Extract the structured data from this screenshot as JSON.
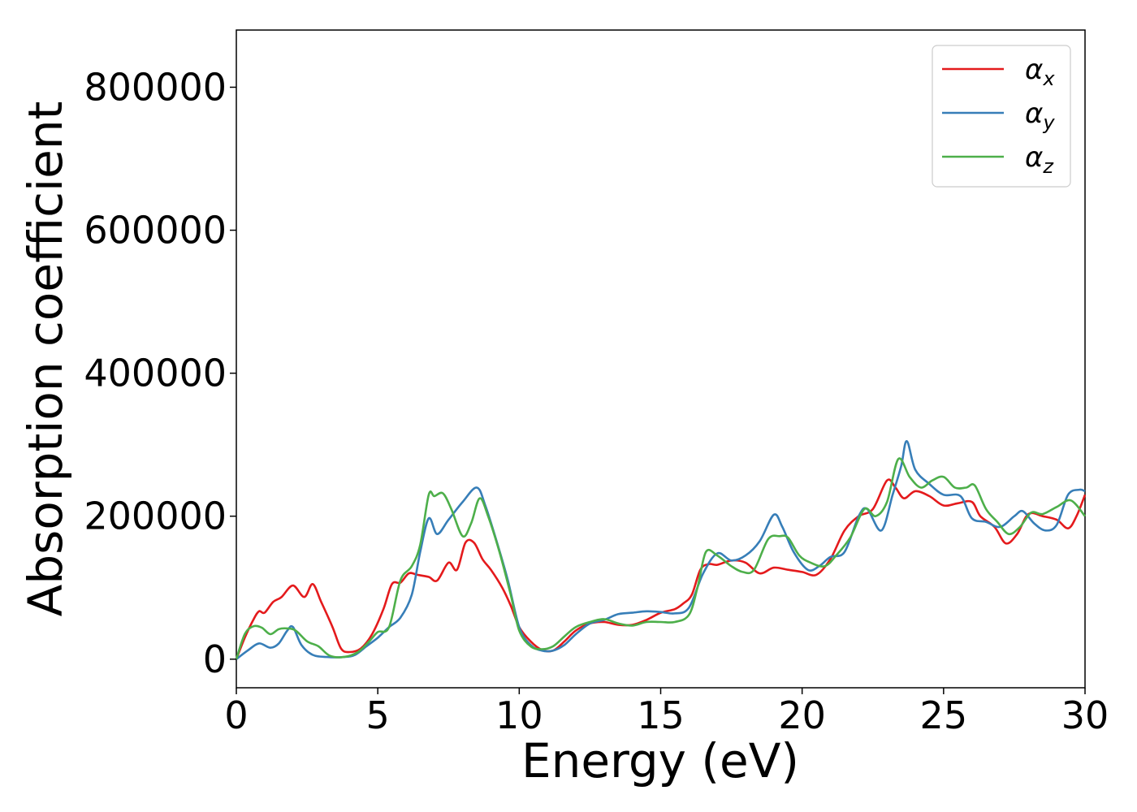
{
  "chart_data": {
    "type": "line",
    "xlabel": "Energy (eV)",
    "ylabel": "Absorption coefficient",
    "xlim": [
      0,
      30
    ],
    "ylim": [
      -40000,
      880000
    ],
    "xticks": [
      0,
      5,
      10,
      15,
      20,
      25,
      30
    ],
    "yticks": [
      0,
      200000,
      400000,
      600000,
      800000
    ],
    "xtick_labels": [
      "0",
      "5",
      "10",
      "15",
      "20",
      "25",
      "30"
    ],
    "ytick_labels": [
      "0",
      "200000",
      "400000",
      "600000",
      "800000"
    ],
    "grid": false,
    "legend_position": "top-right",
    "series": [
      {
        "name": "αx",
        "base": "α",
        "sub": "x",
        "color": "#e41a1c",
        "points": [
          [
            0,
            0
          ],
          [
            0.3,
            30000
          ],
          [
            0.6,
            55000
          ],
          [
            0.8,
            67000
          ],
          [
            1.0,
            65000
          ],
          [
            1.3,
            80000
          ],
          [
            1.6,
            87000
          ],
          [
            2.0,
            103000
          ],
          [
            2.4,
            87000
          ],
          [
            2.7,
            105000
          ],
          [
            3.0,
            80000
          ],
          [
            3.4,
            45000
          ],
          [
            3.7,
            15000
          ],
          [
            4.0,
            10000
          ],
          [
            4.4,
            15000
          ],
          [
            4.8,
            35000
          ],
          [
            5.2,
            70000
          ],
          [
            5.5,
            105000
          ],
          [
            5.8,
            107000
          ],
          [
            6.1,
            120000
          ],
          [
            6.4,
            118000
          ],
          [
            6.8,
            115000
          ],
          [
            7.1,
            110000
          ],
          [
            7.5,
            135000
          ],
          [
            7.8,
            125000
          ],
          [
            8.1,
            163000
          ],
          [
            8.4,
            163000
          ],
          [
            8.7,
            140000
          ],
          [
            9.0,
            125000
          ],
          [
            9.4,
            100000
          ],
          [
            9.7,
            75000
          ],
          [
            10.0,
            45000
          ],
          [
            10.4,
            25000
          ],
          [
            10.8,
            13000
          ],
          [
            11.2,
            12000
          ],
          [
            11.6,
            25000
          ],
          [
            12.0,
            40000
          ],
          [
            12.5,
            50000
          ],
          [
            13.0,
            52000
          ],
          [
            13.5,
            48000
          ],
          [
            14.0,
            48000
          ],
          [
            14.5,
            55000
          ],
          [
            15.0,
            65000
          ],
          [
            15.5,
            70000
          ],
          [
            15.8,
            78000
          ],
          [
            16.1,
            90000
          ],
          [
            16.4,
            125000
          ],
          [
            16.7,
            133000
          ],
          [
            17.0,
            132000
          ],
          [
            17.5,
            138000
          ],
          [
            18.0,
            135000
          ],
          [
            18.5,
            120000
          ],
          [
            19.0,
            128000
          ],
          [
            19.5,
            125000
          ],
          [
            20.0,
            122000
          ],
          [
            20.5,
            118000
          ],
          [
            21.0,
            140000
          ],
          [
            21.5,
            180000
          ],
          [
            22.0,
            200000
          ],
          [
            22.5,
            210000
          ],
          [
            23.0,
            250000
          ],
          [
            23.3,
            240000
          ],
          [
            23.6,
            225000
          ],
          [
            24.0,
            235000
          ],
          [
            24.5,
            228000
          ],
          [
            25.0,
            215000
          ],
          [
            25.5,
            218000
          ],
          [
            26.0,
            220000
          ],
          [
            26.3,
            200000
          ],
          [
            26.8,
            185000
          ],
          [
            27.2,
            162000
          ],
          [
            27.6,
            175000
          ],
          [
            28.0,
            203000
          ],
          [
            28.5,
            200000
          ],
          [
            29.0,
            195000
          ],
          [
            29.4,
            183000
          ],
          [
            29.7,
            200000
          ],
          [
            30.0,
            230000
          ]
        ]
      },
      {
        "name": "αy",
        "base": "α",
        "sub": "y",
        "color": "#377eb8",
        "points": [
          [
            0,
            0
          ],
          [
            0.4,
            12000
          ],
          [
            0.8,
            22000
          ],
          [
            1.2,
            16000
          ],
          [
            1.5,
            22000
          ],
          [
            1.8,
            40000
          ],
          [
            2.0,
            45000
          ],
          [
            2.3,
            20000
          ],
          [
            2.7,
            6000
          ],
          [
            3.2,
            3000
          ],
          [
            3.8,
            3000
          ],
          [
            4.2,
            6000
          ],
          [
            4.6,
            18000
          ],
          [
            5.0,
            30000
          ],
          [
            5.4,
            45000
          ],
          [
            5.8,
            58000
          ],
          [
            6.2,
            90000
          ],
          [
            6.5,
            150000
          ],
          [
            6.8,
            197000
          ],
          [
            7.1,
            175000
          ],
          [
            7.5,
            195000
          ],
          [
            8.0,
            220000
          ],
          [
            8.5,
            240000
          ],
          [
            8.8,
            215000
          ],
          [
            9.2,
            165000
          ],
          [
            9.6,
            110000
          ],
          [
            10.0,
            45000
          ],
          [
            10.4,
            20000
          ],
          [
            10.8,
            12000
          ],
          [
            11.2,
            12000
          ],
          [
            11.6,
            20000
          ],
          [
            12.0,
            35000
          ],
          [
            12.5,
            50000
          ],
          [
            13.0,
            55000
          ],
          [
            13.5,
            63000
          ],
          [
            14.0,
            65000
          ],
          [
            14.5,
            67000
          ],
          [
            15.0,
            66000
          ],
          [
            15.5,
            64000
          ],
          [
            16.0,
            72000
          ],
          [
            16.5,
            120000
          ],
          [
            17.0,
            148000
          ],
          [
            17.5,
            138000
          ],
          [
            18.0,
            145000
          ],
          [
            18.5,
            165000
          ],
          [
            19.0,
            202000
          ],
          [
            19.3,
            185000
          ],
          [
            19.7,
            150000
          ],
          [
            20.2,
            125000
          ],
          [
            20.6,
            130000
          ],
          [
            21.0,
            143000
          ],
          [
            21.5,
            150000
          ],
          [
            22.0,
            200000
          ],
          [
            22.3,
            210000
          ],
          [
            22.8,
            180000
          ],
          [
            23.2,
            230000
          ],
          [
            23.5,
            270000
          ],
          [
            23.7,
            305000
          ],
          [
            24.0,
            265000
          ],
          [
            24.5,
            245000
          ],
          [
            25.0,
            230000
          ],
          [
            25.6,
            228000
          ],
          [
            26.0,
            197000
          ],
          [
            26.5,
            192000
          ],
          [
            27.0,
            185000
          ],
          [
            27.5,
            200000
          ],
          [
            27.8,
            207000
          ],
          [
            28.2,
            190000
          ],
          [
            28.6,
            180000
          ],
          [
            29.0,
            188000
          ],
          [
            29.4,
            230000
          ],
          [
            29.8,
            237000
          ],
          [
            30.0,
            235000
          ]
        ]
      },
      {
        "name": "αz",
        "base": "α",
        "sub": "z",
        "color": "#4daf4a",
        "points": [
          [
            0,
            0
          ],
          [
            0.3,
            35000
          ],
          [
            0.6,
            46000
          ],
          [
            0.9,
            44000
          ],
          [
            1.2,
            35000
          ],
          [
            1.5,
            42000
          ],
          [
            1.8,
            43000
          ],
          [
            2.1,
            40000
          ],
          [
            2.5,
            25000
          ],
          [
            2.9,
            18000
          ],
          [
            3.3,
            5000
          ],
          [
            3.8,
            3000
          ],
          [
            4.3,
            10000
          ],
          [
            4.7,
            25000
          ],
          [
            5.0,
            38000
          ],
          [
            5.4,
            45000
          ],
          [
            5.8,
            110000
          ],
          [
            6.2,
            130000
          ],
          [
            6.5,
            160000
          ],
          [
            6.8,
            230000
          ],
          [
            7.0,
            228000
          ],
          [
            7.3,
            232000
          ],
          [
            7.6,
            210000
          ],
          [
            8.0,
            172000
          ],
          [
            8.3,
            190000
          ],
          [
            8.6,
            225000
          ],
          [
            8.9,
            200000
          ],
          [
            9.3,
            150000
          ],
          [
            9.7,
            90000
          ],
          [
            10.0,
            40000
          ],
          [
            10.4,
            18000
          ],
          [
            10.8,
            14000
          ],
          [
            11.2,
            18000
          ],
          [
            11.6,
            32000
          ],
          [
            12.0,
            45000
          ],
          [
            12.5,
            52000
          ],
          [
            13.0,
            56000
          ],
          [
            13.5,
            50000
          ],
          [
            14.0,
            47000
          ],
          [
            14.5,
            52000
          ],
          [
            15.0,
            52000
          ],
          [
            15.5,
            52000
          ],
          [
            16.0,
            62000
          ],
          [
            16.3,
            100000
          ],
          [
            16.6,
            150000
          ],
          [
            17.0,
            145000
          ],
          [
            17.5,
            130000
          ],
          [
            17.9,
            122000
          ],
          [
            18.3,
            125000
          ],
          [
            18.8,
            168000
          ],
          [
            19.2,
            172000
          ],
          [
            19.5,
            170000
          ],
          [
            19.9,
            145000
          ],
          [
            20.3,
            135000
          ],
          [
            20.8,
            130000
          ],
          [
            21.2,
            145000
          ],
          [
            21.7,
            170000
          ],
          [
            22.2,
            210000
          ],
          [
            22.6,
            200000
          ],
          [
            23.0,
            220000
          ],
          [
            23.4,
            280000
          ],
          [
            23.8,
            255000
          ],
          [
            24.2,
            240000
          ],
          [
            24.6,
            250000
          ],
          [
            25.0,
            255000
          ],
          [
            25.4,
            240000
          ],
          [
            25.8,
            240000
          ],
          [
            26.1,
            243000
          ],
          [
            26.5,
            210000
          ],
          [
            26.9,
            192000
          ],
          [
            27.3,
            175000
          ],
          [
            27.7,
            185000
          ],
          [
            28.1,
            205000
          ],
          [
            28.5,
            203000
          ],
          [
            29.0,
            213000
          ],
          [
            29.5,
            222000
          ],
          [
            30.0,
            200000
          ]
        ]
      }
    ]
  }
}
